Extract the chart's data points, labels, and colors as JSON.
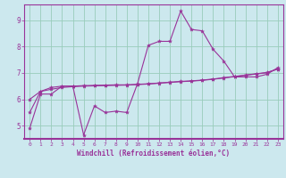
{
  "xlabel": "Windchill (Refroidissement éolien,°C)",
  "background_color": "#cce8ee",
  "grid_color": "#99ccbb",
  "line_color": "#993399",
  "xlim": [
    -0.5,
    23.5
  ],
  "ylim": [
    4.5,
    9.6
  ],
  "yticks": [
    5,
    6,
    7,
    8,
    9
  ],
  "xticks": [
    0,
    1,
    2,
    3,
    4,
    5,
    6,
    7,
    8,
    9,
    10,
    11,
    12,
    13,
    14,
    15,
    16,
    17,
    18,
    19,
    20,
    21,
    22,
    23
  ],
  "xticklabels": [
    "0",
    "1",
    "2",
    "3",
    "4",
    "5",
    "6",
    "7",
    "8",
    "9",
    "10",
    "11",
    "12",
    "13",
    "14",
    "15",
    "16",
    "17",
    "18",
    "19",
    "20",
    "21",
    "22",
    "23"
  ],
  "curve1_x": [
    0,
    1,
    2,
    3,
    4,
    5,
    6,
    7,
    8,
    9,
    10,
    11,
    12,
    13,
    14,
    15,
    16,
    17,
    18,
    19,
    20,
    21,
    22,
    23
  ],
  "curve1_y": [
    4.9,
    6.2,
    6.2,
    6.5,
    6.5,
    4.65,
    5.75,
    5.5,
    5.55,
    5.5,
    6.6,
    8.05,
    8.2,
    8.2,
    9.35,
    8.65,
    8.6,
    7.9,
    7.45,
    6.85,
    6.85,
    6.85,
    6.95,
    7.2
  ],
  "curve2_x": [
    0,
    1,
    2,
    3,
    4,
    5,
    6,
    7,
    8,
    9,
    10,
    11,
    12,
    13,
    14,
    15,
    16,
    17,
    18,
    19,
    20,
    21,
    22,
    23
  ],
  "curve2_y": [
    5.5,
    6.3,
    6.45,
    6.5,
    6.5,
    6.52,
    6.53,
    6.54,
    6.55,
    6.55,
    6.57,
    6.59,
    6.62,
    6.65,
    6.68,
    6.7,
    6.73,
    6.77,
    6.82,
    6.87,
    6.92,
    6.97,
    7.02,
    7.15
  ],
  "curve3_x": [
    0,
    1,
    2,
    3,
    4,
    5,
    6,
    7,
    8,
    9,
    10,
    11,
    12,
    13,
    14,
    15,
    16,
    17,
    18,
    19,
    20,
    21,
    22,
    23
  ],
  "curve3_y": [
    6.0,
    6.3,
    6.38,
    6.45,
    6.48,
    6.5,
    6.51,
    6.52,
    6.53,
    6.54,
    6.56,
    6.58,
    6.61,
    6.64,
    6.67,
    6.69,
    6.72,
    6.76,
    6.81,
    6.86,
    6.91,
    6.96,
    7.01,
    7.15
  ]
}
